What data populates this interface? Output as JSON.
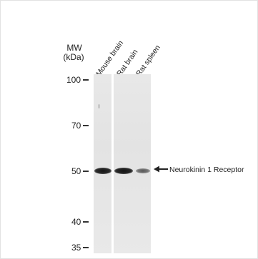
{
  "header": {
    "mw_line1": "MW",
    "mw_line2": "(kDa)"
  },
  "lanes": [
    {
      "label": "Mouse brain"
    },
    {
      "label": "Rat brain"
    },
    {
      "label": "Rat spleen"
    }
  ],
  "markers": [
    {
      "label": "100"
    },
    {
      "label": "70"
    },
    {
      "label": "50"
    },
    {
      "label": "40"
    },
    {
      "label": "35"
    }
  ],
  "target": {
    "label": "Neurokinin 1 Receptor",
    "arrow_icon": "arrow-left-icon"
  },
  "colors": {
    "membrane": "#e5e5e5",
    "band": "#1a1a1a",
    "text": "#222222"
  }
}
